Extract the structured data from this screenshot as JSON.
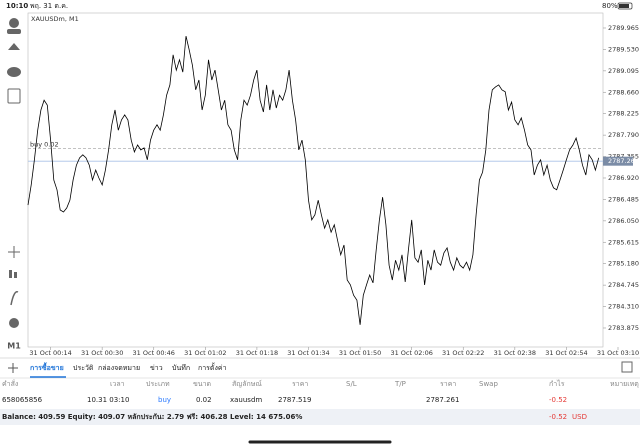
{
  "status_bar": {
    "time": "10:10",
    "date": "พฤ. 31 ต.ค.",
    "battery": "80%"
  },
  "toolbar": {
    "timeframe": "M1"
  },
  "chart_data": {
    "type": "line",
    "title": "XAUUSDm, M1",
    "color": "#000000",
    "x": [
      7,
      8,
      9,
      10,
      11,
      12,
      13,
      14,
      15,
      16,
      17,
      18,
      19,
      20,
      21,
      22,
      23,
      24,
      25,
      26,
      27,
      28,
      29,
      30,
      31,
      32,
      33,
      34,
      35,
      36,
      37,
      38,
      39,
      40,
      41,
      42,
      43,
      44,
      45,
      46,
      47,
      48,
      49,
      50,
      51,
      52,
      53,
      54,
      55,
      56,
      57,
      58,
      59,
      60,
      61,
      62,
      63,
      64,
      65,
      66,
      67,
      68,
      69,
      70,
      71,
      72,
      73,
      74,
      75,
      76,
      77,
      78,
      79,
      80,
      81,
      82,
      83,
      84,
      85,
      86,
      87,
      88,
      89,
      90,
      91,
      92,
      93,
      94,
      95,
      96,
      97,
      98,
      99,
      100,
      101,
      102,
      103,
      104,
      105,
      106,
      107,
      108,
      109,
      110,
      111,
      112,
      113,
      114,
      115,
      116,
      117,
      118,
      119,
      120,
      121,
      122,
      123,
      124,
      125,
      126,
      127,
      128,
      129,
      130,
      131,
      132,
      133,
      134,
      135,
      136,
      137,
      138,
      139,
      140,
      141,
      142,
      143,
      144,
      145,
      146,
      147,
      148,
      149,
      150,
      151,
      152,
      153,
      154,
      155,
      156,
      157,
      158,
      159,
      160,
      161,
      162,
      163,
      164,
      165,
      166,
      167,
      168,
      169,
      170,
      171,
      172,
      173,
      174,
      175,
      176,
      177,
      178,
      179,
      180,
      181,
      182,
      183,
      184
    ],
    "values": [
      2786.37,
      2786.78,
      2787.29,
      2787.89,
      2788.3,
      2788.5,
      2788.4,
      2787.69,
      2786.88,
      2786.68,
      2786.27,
      2786.23,
      2786.31,
      2786.47,
      2786.88,
      2787.18,
      2787.33,
      2787.39,
      2787.33,
      2787.18,
      2786.88,
      2787.08,
      2786.92,
      2786.78,
      2787.08,
      2787.49,
      2788.0,
      2788.3,
      2787.89,
      2788.1,
      2788.2,
      2788.1,
      2787.69,
      2787.45,
      2787.59,
      2787.49,
      2787.53,
      2787.29,
      2787.69,
      2787.89,
      2788.0,
      2787.89,
      2788.2,
      2788.6,
      2788.81,
      2789.42,
      2789.11,
      2789.32,
      2789.07,
      2789.8,
      2789.52,
      2789.21,
      2788.71,
      2788.91,
      2788.3,
      2788.6,
      2789.32,
      2788.91,
      2789.11,
      2788.71,
      2788.3,
      2788.5,
      2788.0,
      2787.89,
      2787.49,
      2787.29,
      2788.1,
      2788.5,
      2788.4,
      2788.6,
      2788.91,
      2789.11,
      2788.5,
      2788.26,
      2788.81,
      2788.3,
      2788.71,
      2788.34,
      2788.6,
      2788.5,
      2788.71,
      2789.11,
      2788.5,
      2788.1,
      2787.49,
      2787.69,
      2787.29,
      2786.47,
      2786.07,
      2786.17,
      2786.47,
      2786.17,
      2785.9,
      2786.07,
      2785.82,
      2785.97,
      2785.66,
      2785.36,
      2785.56,
      2784.85,
      2784.75,
      2784.54,
      2784.44,
      2783.94,
      2784.54,
      2784.75,
      2784.95,
      2784.79,
      2785.46,
      2786.07,
      2786.53,
      2785.97,
      2785.15,
      2784.85,
      2785.25,
      2785.05,
      2785.36,
      2784.81,
      2785.46,
      2786.07,
      2785.3,
      2785.21,
      2785.46,
      2784.75,
      2785.25,
      2785.05,
      2785.46,
      2785.21,
      2785.15,
      2785.4,
      2785.5,
      2785.21,
      2785.05,
      2785.3,
      2785.15,
      2785.09,
      2785.21,
      2785.05,
      2785.36,
      2786.17,
      2786.88,
      2787.04,
      2787.49,
      2788.3,
      2788.71,
      2788.77,
      2788.81,
      2788.71,
      2788.67,
      2788.3,
      2788.46,
      2788.1,
      2788.0,
      2788.14,
      2787.89,
      2787.59,
      2787.49,
      2786.98,
      2787.18,
      2787.29,
      2786.98,
      2787.18,
      2786.88,
      2786.72,
      2786.68,
      2786.88,
      2787.08,
      2787.29,
      2787.49,
      2787.59,
      2787.73,
      2787.49,
      2787.18,
      2786.98,
      2787.39,
      2787.29,
      2787.08,
      2787.33
    ],
    "xlim": [
      7,
      190
    ],
    "xticks": [
      {
        "value": 14,
        "label": "31 Oct 00:14"
      },
      {
        "value": 30,
        "label": "31 Oct 00:30"
      },
      {
        "value": 46,
        "label": "31 Oct 00:46"
      },
      {
        "value": 62,
        "label": "31 Oct 01:02"
      },
      {
        "value": 78,
        "label": "31 Oct 01:18"
      },
      {
        "value": 94,
        "label": "31 Oct 01:34"
      },
      {
        "value": 110,
        "label": "31 Oct 01:50"
      },
      {
        "value": 126,
        "label": "31 Oct 02:06"
      },
      {
        "value": 142,
        "label": "31 Oct 02:22"
      },
      {
        "value": 158,
        "label": "31 Oct 02:38"
      },
      {
        "value": 174,
        "label": "31 Oct 02:54"
      },
      {
        "value": 190,
        "label": "31 Oct 03:10"
      }
    ],
    "ylim": [
      2783.489,
      2790.249
    ],
    "yticks": [
      2789.965,
      {
        "value": 2789.53,
        "label": "2789.530"
      },
      2789.095,
      {
        "value": 2788.66,
        "label": "2788.660"
      },
      2788.225,
      {
        "value": 2787.79,
        "label": "2787.790"
      },
      2787.355,
      {
        "value": 2786.92,
        "label": "2786.920"
      },
      2786.485,
      {
        "value": 2786.05,
        "label": "2786.050"
      },
      2785.615,
      {
        "value": 2785.18,
        "label": "2785.180"
      },
      2784.745,
      {
        "value": 2784.31,
        "label": "2784.310"
      },
      2783.875
    ],
    "order_line": {
      "label": "buy 0.02",
      "value": 2787.519,
      "color": "#9e9e9e"
    },
    "bid_line": {
      "value": 2787.261,
      "color": "#a9c1e6",
      "label_color": "#7b8ca6"
    }
  },
  "tabs": [
    "การซื้อขาย",
    "ประวัติ",
    "กล่องจดหมาย",
    "ข่าว",
    "บันทึก",
    "การตั้งค่า"
  ],
  "table": {
    "header": [
      "คำสั่ง",
      "เวลา",
      "ประเภท",
      "ขนาด",
      "สัญลักษณ์",
      "ราคา",
      "S/L",
      "T/P",
      "ราคา",
      "Swap",
      "กำไร",
      "หมายเหตุ"
    ],
    "row": {
      "order": "658065856",
      "time": "10.31 03:10",
      "type": "buy",
      "size": "0.02",
      "symbol": "xauusdm",
      "open_price": "2787.519",
      "price": "2787.261",
      "profit": "-0.52"
    },
    "summary": "Balance: 409.59 Equity: 409.07 หลักประกัน: 2.79 ฟรี: 406.28 Level: 14 675.06%",
    "summary_profit": "-0.52",
    "currency": "USD"
  }
}
